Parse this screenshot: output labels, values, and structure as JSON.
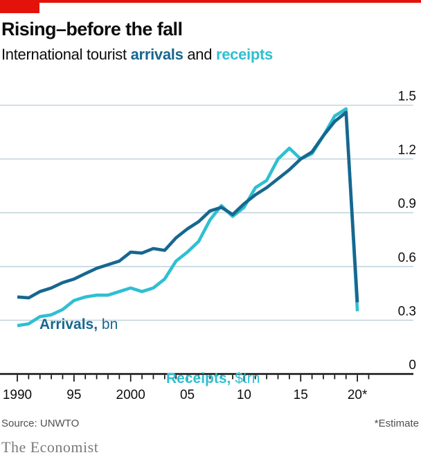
{
  "colors": {
    "brand_red": "#E3120B",
    "arrivals_blue": "#17678F",
    "receipts_cyan": "#2FBFD2",
    "gridline": "#C3D5DE",
    "axis_black": "#0F0F0F",
    "text_dark": "#0D0D0D",
    "source_gray": "#4F4F4F",
    "brand_gray": "#7A7A7A"
  },
  "header": {
    "title": "Rising–before the fall",
    "subtitle_prefix": "International tourist ",
    "subtitle_arrivals": "arrivals",
    "subtitle_mid": " and ",
    "subtitle_receipts": "receipts"
  },
  "chart_data": {
    "type": "line",
    "title": "Rising–before the fall",
    "subtitle": "International tourist arrivals and receipts",
    "x": [
      1990,
      1991,
      1992,
      1993,
      1994,
      1995,
      1996,
      1997,
      1998,
      1999,
      2000,
      2001,
      2002,
      2003,
      2004,
      2005,
      2006,
      2007,
      2008,
      2009,
      2010,
      2011,
      2012,
      2013,
      2014,
      2015,
      2016,
      2017,
      2018,
      2019,
      2020
    ],
    "series": [
      {
        "name": "Arrivals",
        "unit": "bn",
        "color": "#17678F",
        "values": [
          0.43,
          0.425,
          0.46,
          0.48,
          0.51,
          0.53,
          0.56,
          0.59,
          0.61,
          0.63,
          0.68,
          0.675,
          0.7,
          0.69,
          0.76,
          0.81,
          0.85,
          0.91,
          0.93,
          0.89,
          0.95,
          1.0,
          1.04,
          1.09,
          1.14,
          1.2,
          1.24,
          1.33,
          1.41,
          1.46,
          0.4
        ]
      },
      {
        "name": "Receipts",
        "unit": "$trn",
        "color": "#2FBFD2",
        "values": [
          0.27,
          0.28,
          0.32,
          0.33,
          0.36,
          0.41,
          0.43,
          0.44,
          0.44,
          0.46,
          0.48,
          0.46,
          0.48,
          0.53,
          0.63,
          0.68,
          0.74,
          0.86,
          0.94,
          0.88,
          0.93,
          1.04,
          1.08,
          1.2,
          1.26,
          1.2,
          1.23,
          1.33,
          1.44,
          1.48,
          0.35
        ]
      }
    ],
    "series_labels": [
      {
        "bold": "Arrivals,",
        "regular": " bn"
      },
      {
        "bold": "Receipts,",
        "regular": " $trn"
      }
    ],
    "ylim": [
      0,
      1.5
    ],
    "y_ticks": [
      0,
      0.3,
      0.6,
      0.9,
      1.2,
      1.5
    ],
    "y_tick_labels": [
      "0",
      "0.3",
      "0.6",
      "0.9",
      "1.2",
      "1.5"
    ],
    "x_range": [
      1990,
      2021
    ],
    "x_tick_labels": [
      {
        "year": 1990,
        "label": "1990"
      },
      {
        "year": 1995,
        "label": "95"
      },
      {
        "year": 2000,
        "label": "2000"
      },
      {
        "year": 2005,
        "label": "05"
      },
      {
        "year": 2010,
        "label": "10"
      },
      {
        "year": 2015,
        "label": "15"
      },
      {
        "year": 2020,
        "label": "20*"
      }
    ],
    "grid": true,
    "legend_position": "inline-labels",
    "annotation": "2020 value is an estimate (*)"
  },
  "footer": {
    "source": "Source: UNWTO",
    "estimate_note": "*Estimate",
    "brand": "The Economist"
  }
}
